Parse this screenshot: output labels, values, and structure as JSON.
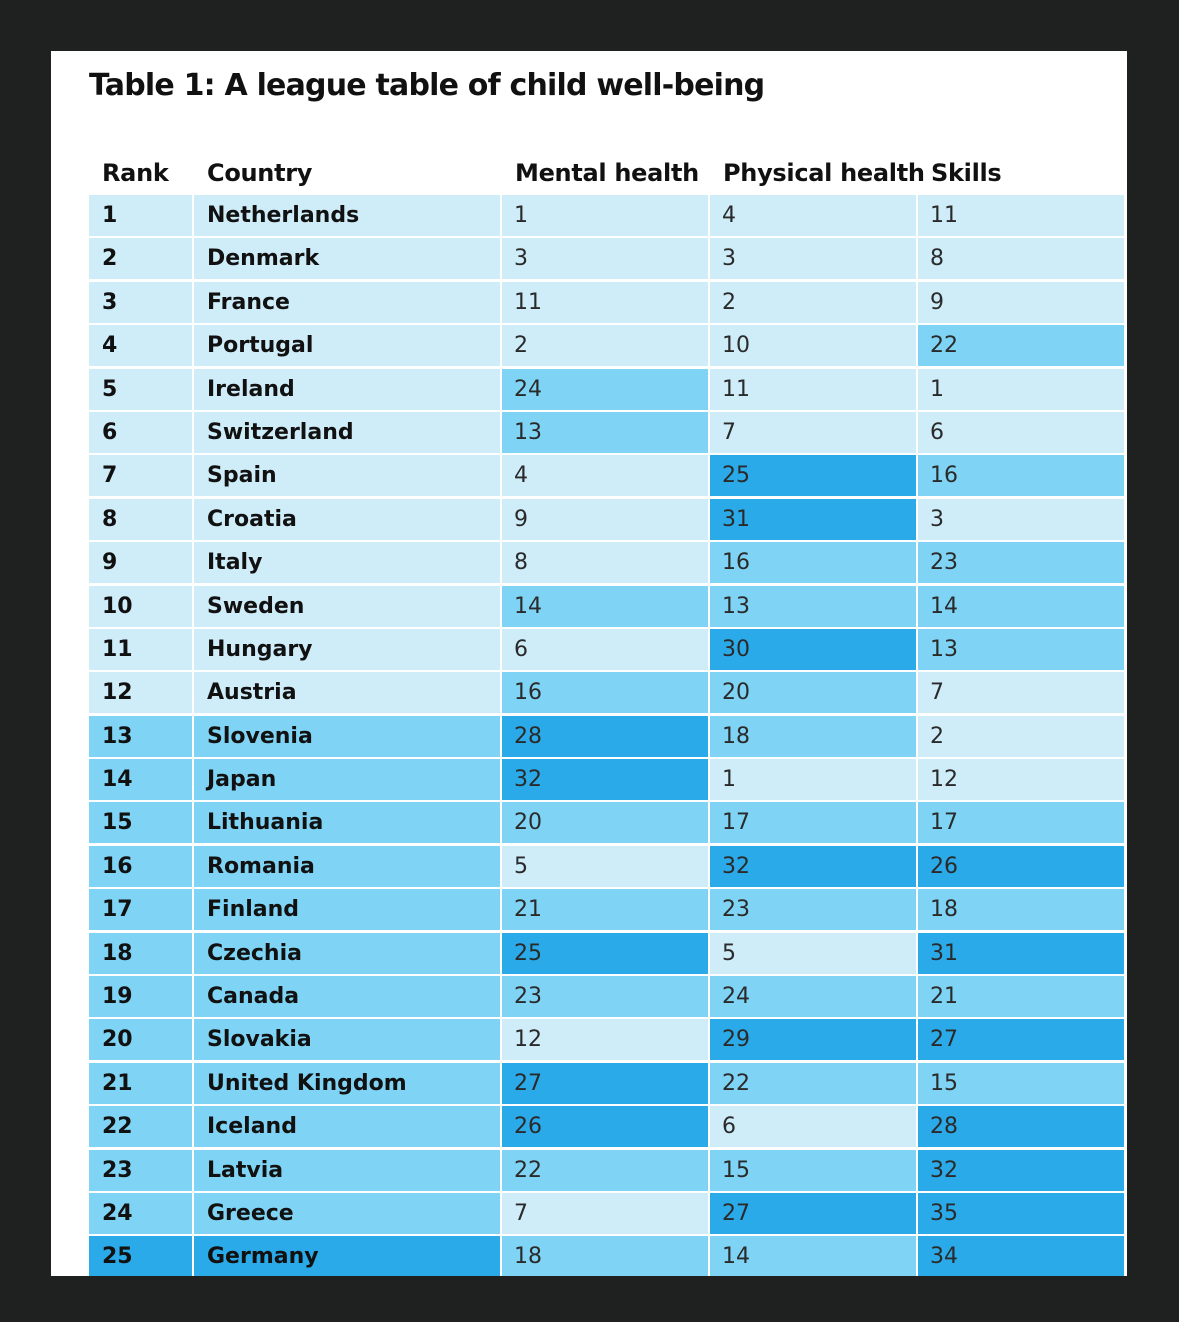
{
  "title": "Table 1: A league table of child well-being",
  "columns": [
    "Rank",
    "Country",
    "Mental health",
    "Physical health",
    "Skills"
  ],
  "color_scale": {
    "ranks_1_12": "#cfedf9",
    "ranks_13_24": "#7fd4f5",
    "ranks_25_plus": "#2baae9"
  },
  "rows": [
    {
      "rank": "1",
      "country": "Netherlands",
      "mental": "1",
      "physical": "4",
      "skills": "11"
    },
    {
      "rank": "2",
      "country": "Denmark",
      "mental": "3",
      "physical": "3",
      "skills": "8"
    },
    {
      "rank": "3",
      "country": "France",
      "mental": "11",
      "physical": "2",
      "skills": "9"
    },
    {
      "rank": "4",
      "country": "Portugal",
      "mental": "2",
      "physical": "10",
      "skills": "22"
    },
    {
      "rank": "5",
      "country": "Ireland",
      "mental": "24",
      "physical": "11",
      "skills": "1"
    },
    {
      "rank": "6",
      "country": "Switzerland",
      "mental": "13",
      "physical": "7",
      "skills": "6"
    },
    {
      "rank": "7",
      "country": "Spain",
      "mental": "4",
      "physical": "25",
      "skills": "16"
    },
    {
      "rank": "8",
      "country": "Croatia",
      "mental": "9",
      "physical": "31",
      "skills": "3"
    },
    {
      "rank": "9",
      "country": "Italy",
      "mental": "8",
      "physical": "16",
      "skills": "23"
    },
    {
      "rank": "10",
      "country": "Sweden",
      "mental": "14",
      "physical": "13",
      "skills": "14"
    },
    {
      "rank": "11",
      "country": "Hungary",
      "mental": "6",
      "physical": "30",
      "skills": "13"
    },
    {
      "rank": "12",
      "country": "Austria",
      "mental": "16",
      "physical": "20",
      "skills": "7"
    },
    {
      "rank": "13",
      "country": "Slovenia",
      "mental": "28",
      "physical": "18",
      "skills": "2"
    },
    {
      "rank": "14",
      "country": "Japan",
      "mental": "32",
      "physical": "1",
      "skills": "12"
    },
    {
      "rank": "15",
      "country": "Lithuania",
      "mental": "20",
      "physical": "17",
      "skills": "17"
    },
    {
      "rank": "16",
      "country": "Romania",
      "mental": "5",
      "physical": "32",
      "skills": "26"
    },
    {
      "rank": "17",
      "country": "Finland",
      "mental": "21",
      "physical": "23",
      "skills": "18"
    },
    {
      "rank": "18",
      "country": "Czechia",
      "mental": "25",
      "physical": "5",
      "skills": "31"
    },
    {
      "rank": "19",
      "country": "Canada",
      "mental": "23",
      "physical": "24",
      "skills": "21"
    },
    {
      "rank": "20",
      "country": "Slovakia",
      "mental": "12",
      "physical": "29",
      "skills": "27"
    },
    {
      "rank": "21",
      "country": "United Kingdom",
      "mental": "27",
      "physical": "22",
      "skills": "15"
    },
    {
      "rank": "22",
      "country": "Iceland",
      "mental": "26",
      "physical": "6",
      "skills": "28"
    },
    {
      "rank": "23",
      "country": "Latvia",
      "mental": "22",
      "physical": "15",
      "skills": "32"
    },
    {
      "rank": "24",
      "country": "Greece",
      "mental": "7",
      "physical": "27",
      "skills": "35"
    },
    {
      "rank": "25",
      "country": "Germany",
      "mental": "18",
      "physical": "14",
      "skills": "34"
    }
  ]
}
